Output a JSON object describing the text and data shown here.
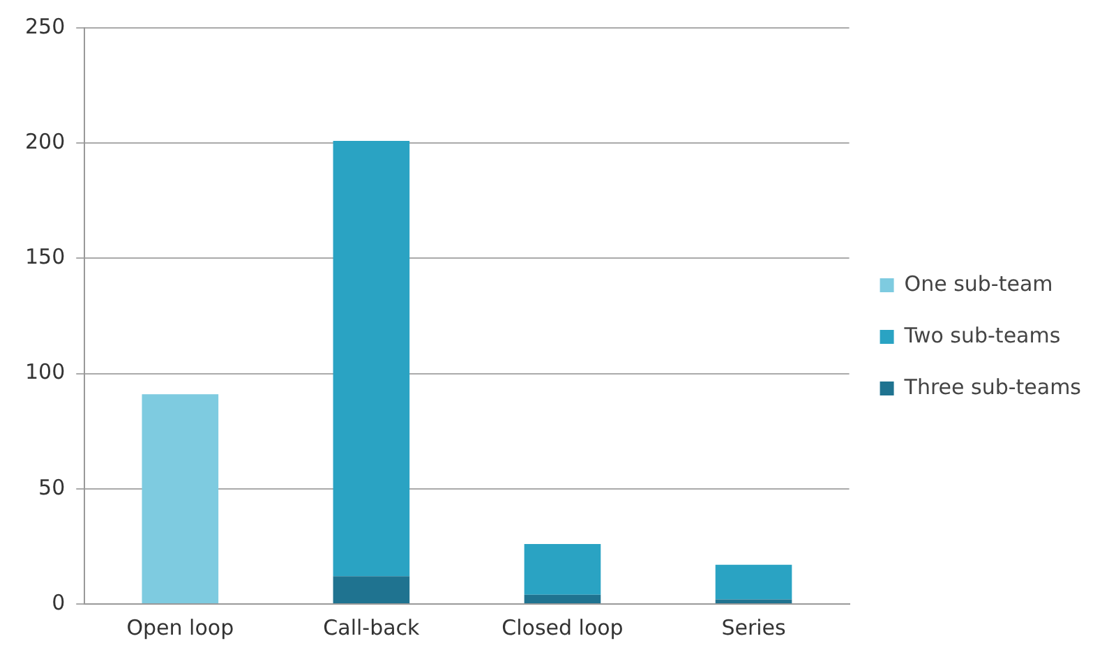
{
  "chart_data": {
    "type": "bar",
    "stacked": true,
    "categories": [
      "Open loop",
      "Call-back",
      "Closed loop",
      "Series"
    ],
    "series": [
      {
        "name": "Three sub-teams",
        "color": "#1f7390",
        "values": [
          0,
          12,
          4,
          2
        ]
      },
      {
        "name": "Two sub-teams",
        "color": "#2aa3c3",
        "values": [
          0,
          189,
          22,
          15
        ]
      },
      {
        "name": "One sub-team",
        "color": "#7ecbe0",
        "values": [
          91,
          0,
          0,
          0
        ]
      }
    ],
    "ylim": [
      0,
      250
    ],
    "yticks": [
      0,
      50,
      100,
      150,
      200,
      250
    ],
    "grid": "y",
    "legend": "right"
  }
}
